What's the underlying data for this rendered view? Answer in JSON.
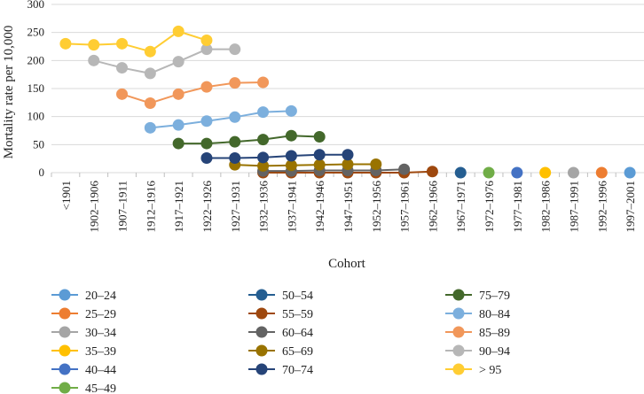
{
  "chart_data": {
    "type": "line",
    "title": "",
    "xlabel": "Cohort",
    "ylabel": "Mortality rate per 10,000",
    "ylim": [
      0,
      300
    ],
    "yticks": [
      0,
      50,
      100,
      150,
      200,
      250,
      300
    ],
    "grid": "horizontal",
    "legend_position": "bottom",
    "categories": [
      "<1901",
      "1902–1906",
      "1907–1911",
      "1912–1916",
      "1917–1921",
      "1922–1926",
      "1927–1931",
      "1932–1936",
      "1937–1941",
      "1942–1946",
      "1947–1951",
      "1952–1956",
      "1957–1961",
      "1962–1966",
      "1967–1971",
      "1972–1976",
      "1977–1981",
      "1982–1986",
      "1987–1991",
      "1992–1996",
      "1997–2001"
    ],
    "series": [
      {
        "name": "20–24",
        "color": "#5B9BD5",
        "values": [
          null,
          null,
          null,
          null,
          null,
          null,
          null,
          null,
          null,
          null,
          null,
          null,
          null,
          null,
          null,
          null,
          null,
          null,
          null,
          null,
          0
        ]
      },
      {
        "name": "25–29",
        "color": "#ED7D31",
        "values": [
          null,
          null,
          null,
          null,
          null,
          null,
          null,
          null,
          null,
          null,
          null,
          null,
          null,
          null,
          null,
          null,
          null,
          null,
          null,
          0,
          null
        ]
      },
      {
        "name": "30–34",
        "color": "#A5A5A5",
        "values": [
          null,
          null,
          null,
          null,
          null,
          null,
          null,
          null,
          null,
          null,
          null,
          null,
          null,
          null,
          null,
          null,
          null,
          null,
          0,
          null,
          null
        ]
      },
      {
        "name": "35–39",
        "color": "#FFC000",
        "values": [
          null,
          null,
          null,
          null,
          null,
          null,
          null,
          null,
          null,
          null,
          null,
          null,
          null,
          null,
          null,
          null,
          null,
          0,
          null,
          null,
          null
        ]
      },
      {
        "name": "40–44",
        "color": "#4472C4",
        "values": [
          null,
          null,
          null,
          null,
          null,
          null,
          null,
          null,
          null,
          null,
          null,
          null,
          null,
          null,
          null,
          null,
          0,
          null,
          null,
          null,
          null
        ]
      },
      {
        "name": "45–49",
        "color": "#70AD47",
        "values": [
          null,
          null,
          null,
          null,
          null,
          null,
          null,
          null,
          null,
          null,
          null,
          null,
          null,
          null,
          null,
          0,
          null,
          null,
          null,
          null,
          null
        ]
      },
      {
        "name": "50–54",
        "color": "#255E91",
        "values": [
          null,
          null,
          null,
          null,
          null,
          null,
          null,
          null,
          null,
          null,
          null,
          null,
          null,
          null,
          0,
          null,
          null,
          null,
          null,
          null,
          null
        ]
      },
      {
        "name": "55–59",
        "color": "#9E480E",
        "values": [
          null,
          null,
          null,
          null,
          null,
          null,
          null,
          0,
          0,
          0,
          0,
          0,
          0,
          2,
          null,
          null,
          null,
          null,
          null,
          null,
          null
        ]
      },
      {
        "name": "60–64",
        "color": "#636363",
        "values": [
          null,
          null,
          null,
          null,
          null,
          null,
          null,
          3,
          3,
          4,
          4,
          4,
          6,
          null,
          null,
          null,
          null,
          null,
          null,
          null,
          null
        ]
      },
      {
        "name": "65–69",
        "color": "#997300",
        "values": [
          null,
          null,
          null,
          null,
          null,
          null,
          14,
          12,
          13,
          14,
          15,
          15,
          null,
          null,
          null,
          null,
          null,
          null,
          null,
          null,
          null
        ]
      },
      {
        "name": "70–74",
        "color": "#264478",
        "values": [
          null,
          null,
          null,
          null,
          null,
          26,
          26,
          27,
          30,
          32,
          32,
          null,
          null,
          null,
          null,
          null,
          null,
          null,
          null,
          null,
          null
        ]
      },
      {
        "name": "75–79",
        "color": "#43682B",
        "values": [
          null,
          null,
          null,
          null,
          52,
          52,
          55,
          59,
          66,
          64,
          null,
          null,
          null,
          null,
          null,
          null,
          null,
          null,
          null,
          null,
          null
        ]
      },
      {
        "name": "80–84",
        "color": "#7CAFDD",
        "values": [
          null,
          null,
          null,
          80,
          85,
          92,
          99,
          108,
          110,
          null,
          null,
          null,
          null,
          null,
          null,
          null,
          null,
          null,
          null,
          null,
          null
        ]
      },
      {
        "name": "85–89",
        "color": "#F1975A",
        "values": [
          null,
          null,
          140,
          124,
          140,
          153,
          160,
          161,
          null,
          null,
          null,
          null,
          null,
          null,
          null,
          null,
          null,
          null,
          null,
          null,
          null
        ]
      },
      {
        "name": "90–94",
        "color": "#B7B7B7",
        "values": [
          null,
          200,
          187,
          177,
          198,
          220,
          220,
          null,
          null,
          null,
          null,
          null,
          null,
          null,
          null,
          null,
          null,
          null,
          null,
          null,
          null
        ]
      },
      {
        "name": "> 95",
        "color": "#FFCD33",
        "values": [
          230,
          228,
          230,
          216,
          252,
          236,
          null,
          null,
          null,
          null,
          null,
          null,
          null,
          null,
          null,
          null,
          null,
          null,
          null,
          null,
          null
        ]
      }
    ]
  }
}
